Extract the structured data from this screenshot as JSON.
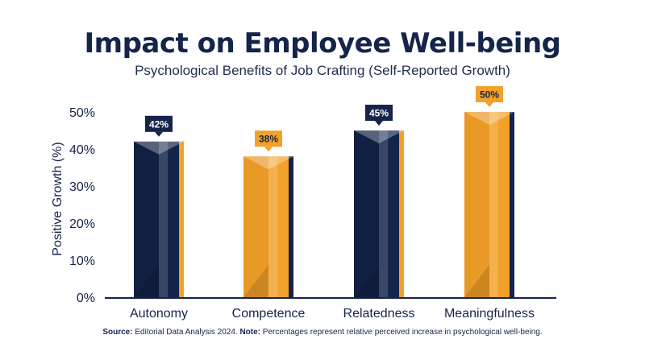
{
  "title": "Impact on Employee Well-being",
  "subtitle": "Psychological Benefits of Job Crafting (Self-Reported Growth)",
  "footnote": {
    "source_label": "Source:",
    "source_text": "Editorial Data Analysis 2024.",
    "note_label": "Note:",
    "note_text": "Percentages represent relative perceived increase in psychological well-being."
  },
  "colors": {
    "navy": "#14244a",
    "orange": "#f2a12b",
    "text": "#14244a"
  },
  "chart_data": {
    "type": "bar",
    "categories": [
      "Autonomy",
      "Competence",
      "Relatedness",
      "Meaningfulness"
    ],
    "values": [
      42,
      38,
      45,
      50
    ],
    "data_labels": [
      "42%",
      "38%",
      "45%",
      "50%"
    ],
    "bar_colors": [
      "navy",
      "orange",
      "navy",
      "orange"
    ],
    "ylabel": "Positive Growth (%)",
    "xlabel": "",
    "ylim": [
      0,
      50
    ],
    "yticks": [
      0,
      10,
      20,
      30,
      40,
      50
    ],
    "ytick_labels": [
      "0%",
      "10%",
      "20%",
      "30%",
      "40%",
      "50%"
    ],
    "grid": false,
    "legend": "none"
  }
}
